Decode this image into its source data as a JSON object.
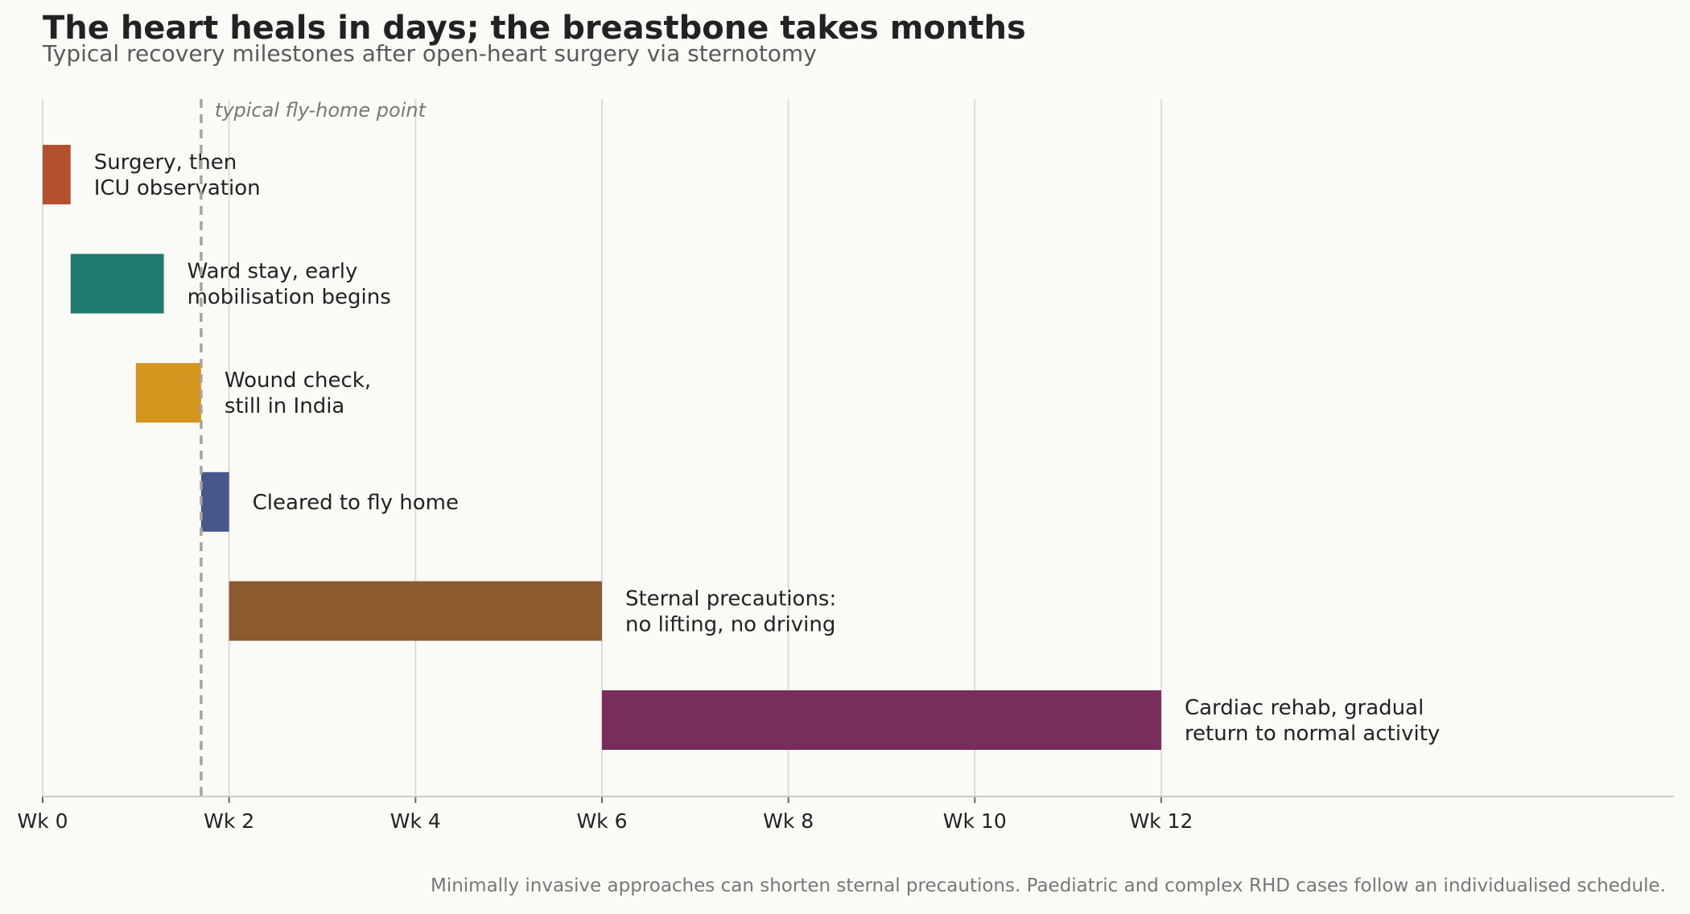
{
  "chart_data": {
    "type": "bar",
    "orientation": "horizontal-timeline",
    "title": "The heart heals in days; the breastbone takes months",
    "subtitle": "Typical recovery milestones after open-heart surgery via sternotomy",
    "xlabel": "",
    "ylabel": "",
    "x_unit": "weeks",
    "xlim": [
      0,
      17.5
    ],
    "ticks": [
      {
        "value": 0,
        "label": "Wk 0"
      },
      {
        "value": 2,
        "label": "Wk 2"
      },
      {
        "value": 4,
        "label": "Wk 4"
      },
      {
        "value": 6,
        "label": "Wk 6"
      },
      {
        "value": 8,
        "label": "Wk 8"
      },
      {
        "value": 10,
        "label": "Wk 10"
      },
      {
        "value": 12,
        "label": "Wk 12"
      }
    ],
    "grid": true,
    "phases": [
      {
        "start": 0,
        "end": 0.3,
        "label_lines": [
          "Surgery, then",
          "ICU observation"
        ],
        "color": "#b5502f"
      },
      {
        "start": 0.3,
        "end": 1.3,
        "label_lines": [
          "Ward stay, early",
          "mobilisation begins"
        ],
        "color": "#1f7b6d"
      },
      {
        "start": 1.0,
        "end": 1.7,
        "label_lines": [
          "Wound check,",
          "still in India"
        ],
        "color": "#d4961f"
      },
      {
        "start": 1.7,
        "end": 2.0,
        "label_lines": [
          "Cleared to fly home"
        ],
        "color": "#47578b"
      },
      {
        "start": 2.0,
        "end": 6.0,
        "label_lines": [
          "Sternal precautions:",
          "no lifting, no driving"
        ],
        "color": "#8b5a2e"
      },
      {
        "start": 6.0,
        "end": 12.0,
        "label_lines": [
          "Cardiac rehab, gradual",
          "return to normal activity"
        ],
        "color": "#782d5b"
      }
    ],
    "reference_line": {
      "value": 1.7,
      "label": "typical fly-home point",
      "color": "#a8a49c"
    },
    "note": "Minimally invasive approaches can shorten sternal precautions. Paediatric and complex RHD cases follow an individualised schedule."
  }
}
